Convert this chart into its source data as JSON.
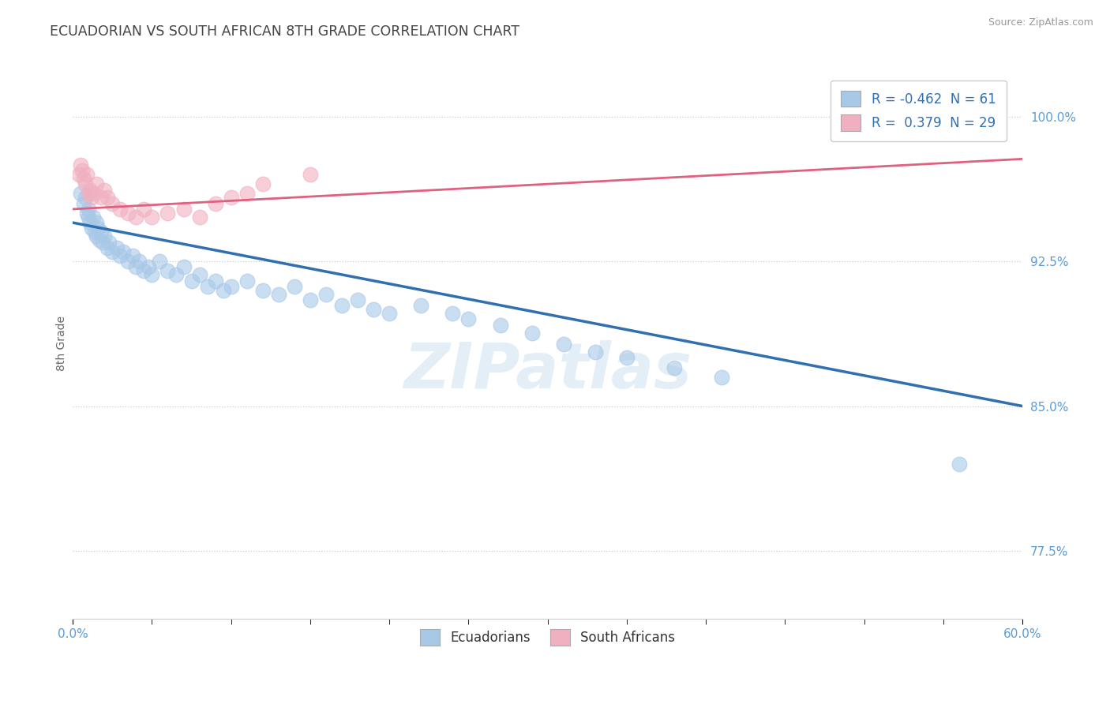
{
  "title": "ECUADORIAN VS SOUTH AFRICAN 8TH GRADE CORRELATION CHART",
  "source_text": "Source: ZipAtlas.com",
  "ylabel": "8th Grade",
  "xlim": [
    0.0,
    0.6
  ],
  "ylim": [
    0.74,
    1.025
  ],
  "yticks": [
    0.775,
    0.85,
    0.925,
    1.0
  ],
  "ytick_labels": [
    "77.5%",
    "85.0%",
    "92.5%",
    "100.0%"
  ],
  "xtick_positions": [
    0.0,
    0.6
  ],
  "xtick_labels": [
    "0.0%",
    "60.0%"
  ],
  "blue_color": "#a8c8e8",
  "pink_color": "#f0b0c0",
  "blue_line_color": "#3070b0",
  "pink_line_color": "#e06080",
  "legend_R_blue": "-0.462",
  "legend_N_blue": "61",
  "legend_R_pink": "0.379",
  "legend_N_pink": "29",
  "legend_label_blue": "Ecuadorians",
  "legend_label_pink": "South Africans",
  "blue_scatter_x": [
    0.005,
    0.007,
    0.008,
    0.009,
    0.01,
    0.01,
    0.011,
    0.012,
    0.013,
    0.014,
    0.015,
    0.015,
    0.016,
    0.017,
    0.018,
    0.019,
    0.02,
    0.022,
    0.023,
    0.025,
    0.028,
    0.03,
    0.032,
    0.035,
    0.038,
    0.04,
    0.042,
    0.045,
    0.048,
    0.05,
    0.055,
    0.06,
    0.065,
    0.07,
    0.075,
    0.08,
    0.085,
    0.09,
    0.095,
    0.1,
    0.11,
    0.12,
    0.13,
    0.14,
    0.15,
    0.16,
    0.17,
    0.18,
    0.19,
    0.2,
    0.22,
    0.24,
    0.25,
    0.27,
    0.29,
    0.31,
    0.33,
    0.35,
    0.38,
    0.41,
    0.56
  ],
  "blue_scatter_y": [
    0.96,
    0.955,
    0.958,
    0.95,
    0.948,
    0.952,
    0.945,
    0.942,
    0.948,
    0.94,
    0.945,
    0.938,
    0.942,
    0.936,
    0.94,
    0.935,
    0.938,
    0.932,
    0.935,
    0.93,
    0.932,
    0.928,
    0.93,
    0.925,
    0.928,
    0.922,
    0.925,
    0.92,
    0.922,
    0.918,
    0.925,
    0.92,
    0.918,
    0.922,
    0.915,
    0.918,
    0.912,
    0.915,
    0.91,
    0.912,
    0.915,
    0.91,
    0.908,
    0.912,
    0.905,
    0.908,
    0.902,
    0.905,
    0.9,
    0.898,
    0.902,
    0.898,
    0.895,
    0.892,
    0.888,
    0.882,
    0.878,
    0.875,
    0.87,
    0.865,
    0.82
  ],
  "pink_scatter_x": [
    0.004,
    0.005,
    0.006,
    0.007,
    0.008,
    0.009,
    0.01,
    0.011,
    0.012,
    0.013,
    0.015,
    0.018,
    0.02,
    0.022,
    0.025,
    0.03,
    0.035,
    0.04,
    0.045,
    0.05,
    0.06,
    0.07,
    0.08,
    0.09,
    0.1,
    0.11,
    0.12,
    0.15,
    0.55
  ],
  "pink_scatter_y": [
    0.97,
    0.975,
    0.972,
    0.968,
    0.965,
    0.97,
    0.96,
    0.962,
    0.958,
    0.96,
    0.965,
    0.958,
    0.962,
    0.958,
    0.955,
    0.952,
    0.95,
    0.948,
    0.952,
    0.948,
    0.95,
    0.952,
    0.948,
    0.955,
    0.958,
    0.96,
    0.965,
    0.97,
    0.998
  ],
  "blue_line_x": [
    0.0,
    0.6
  ],
  "blue_line_y": [
    0.945,
    0.85
  ],
  "pink_line_x": [
    0.0,
    0.6
  ],
  "pink_line_y": [
    0.952,
    0.978
  ],
  "watermark": "ZIPatlas",
  "grid_color": "#cccccc",
  "title_color": "#444444",
  "axis_color": "#5b9bd5",
  "bg_color": "#ffffff",
  "scatter_size": 180,
  "scatter_alpha": 0.6
}
